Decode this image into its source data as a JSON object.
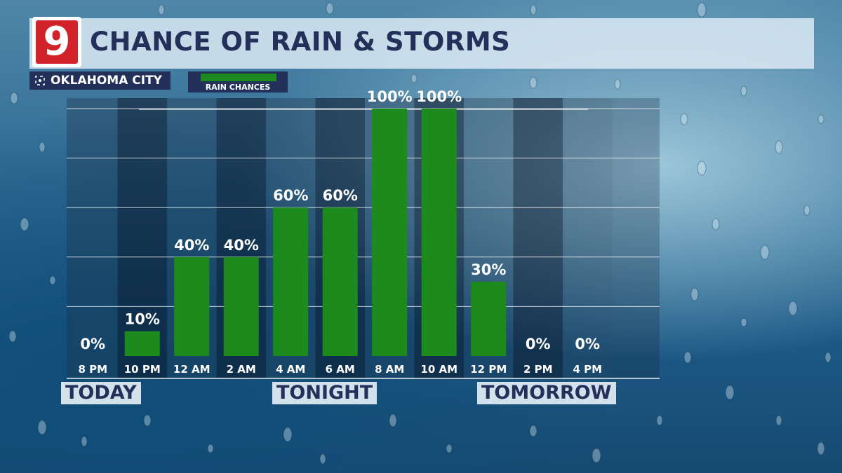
{
  "header": {
    "logo_text": "9",
    "title": "CHANCE OF RAIN & STORMS",
    "location": "OKLAHOMA CITY",
    "legend_label": "RAIN CHANCES"
  },
  "sections": {
    "today": "TODAY",
    "tonight": "TONIGHT",
    "tomorrow": "TOMORROW"
  },
  "colors": {
    "bar": "#1c8a1c",
    "navy": "#22305a",
    "label": "#ffffff"
  },
  "chart_data": {
    "type": "bar",
    "title": "CHANCE OF RAIN & STORMS",
    "categories": [
      "8 PM",
      "10 PM",
      "12 AM",
      "2 AM",
      "4 AM",
      "6 AM",
      "8 AM",
      "10 AM",
      "12 PM",
      "2 PM",
      "4 PM"
    ],
    "series": [
      {
        "name": "RAIN CHANCES",
        "values": [
          0,
          10,
          40,
          40,
          60,
          60,
          100,
          100,
          30,
          0,
          0
        ],
        "labels": [
          "0%",
          "10%",
          "40%",
          "40%",
          "60%",
          "60%",
          "100%",
          "100%",
          "30%",
          "0%",
          "0%"
        ]
      }
    ],
    "ylim": [
      0,
      100
    ],
    "grid": true,
    "legend": "top-left"
  }
}
